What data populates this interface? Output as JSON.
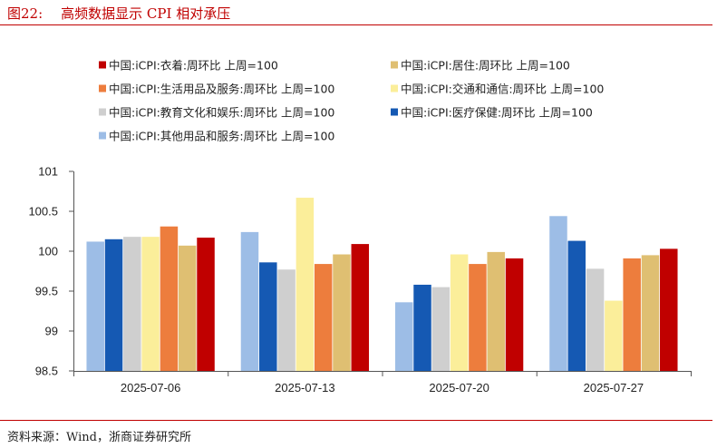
{
  "header": {
    "figure_label": "图22:",
    "title": "高频数据显示 CPI 相对承压"
  },
  "footer": {
    "source": "资料来源：Wind，浙商证券研究所"
  },
  "chart_data": {
    "type": "bar",
    "title": "高频数据显示 CPI 相对承压",
    "xlabel": "",
    "ylabel": "",
    "ylim": [
      98.5,
      101
    ],
    "yticks": [
      98.5,
      99,
      99.5,
      100,
      100.5,
      101
    ],
    "ytick_labels": [
      "98.5",
      "99",
      "99.5",
      "100",
      "100.5",
      "101"
    ],
    "grid": false,
    "legend_position": "top",
    "categories": [
      "2025-07-06",
      "2025-07-13",
      "2025-07-20",
      "2025-07-27"
    ],
    "series": [
      {
        "name": "中国:iCPI:其他用品和服务:周环比 上周=100",
        "color": "#9dbde6",
        "values": [
          100.12,
          100.24,
          99.36,
          100.44
        ]
      },
      {
        "name": "中国:iCPI:医疗保健:周环比 上周=100",
        "color": "#1559b3",
        "values": [
          100.15,
          99.86,
          99.58,
          100.13
        ]
      },
      {
        "name": "中国:iCPI:教育文化和娱乐:周环比 上周=100",
        "color": "#cfcfcf",
        "values": [
          100.18,
          99.77,
          99.55,
          99.78
        ]
      },
      {
        "name": "中国:iCPI:交通和通信:周环比 上周=100",
        "color": "#fbee9a",
        "values": [
          100.18,
          100.67,
          99.96,
          99.38
        ]
      },
      {
        "name": "中国:iCPI:生活用品及服务:周环比 上周=100",
        "color": "#ed7d3d",
        "values": [
          100.31,
          99.84,
          99.84,
          99.91
        ]
      },
      {
        "name": "中国:iCPI:居住:周环比 上周=100",
        "color": "#dfbf72",
        "values": [
          100.07,
          99.96,
          99.99,
          99.95
        ]
      },
      {
        "name": "中国:iCPI:衣着:周环比 上周=100",
        "color": "#c00000",
        "values": [
          100.17,
          100.09,
          99.91,
          100.03
        ]
      }
    ],
    "legend_order": [
      6,
      5,
      4,
      3,
      2,
      1,
      0
    ]
  }
}
